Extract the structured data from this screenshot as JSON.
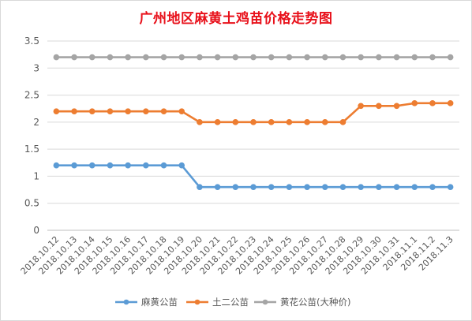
{
  "chart_data": {
    "type": "line",
    "title": "广州地区麻黄土鸡苗价格走势图",
    "categories": [
      "2018.10.12",
      "2018.10.13",
      "2018.10.14",
      "2018.10.15",
      "2018.10.16",
      "2018.10.17",
      "2018.10.18",
      "2018.10.19",
      "2018.10.20",
      "2018.10.21",
      "2018.10.22",
      "2018.10.23",
      "2018.10.24",
      "2018.10.25",
      "2018.10.26",
      "2018.10.27",
      "2018.10.28",
      "2018.10.29",
      "2018.10.30",
      "2018.10.31",
      "2018.11.1",
      "2018.11.2",
      "2018.11.3"
    ],
    "series": [
      {
        "name": "麻黄公苗",
        "color": "#5b9bd5",
        "values": [
          1.2,
          1.2,
          1.2,
          1.2,
          1.2,
          1.2,
          1.2,
          1.2,
          0.8,
          0.8,
          0.8,
          0.8,
          0.8,
          0.8,
          0.8,
          0.8,
          0.8,
          0.8,
          0.8,
          0.8,
          0.8,
          0.8,
          0.8
        ]
      },
      {
        "name": "土二公苗",
        "color": "#ed7d31",
        "values": [
          2.2,
          2.2,
          2.2,
          2.2,
          2.2,
          2.2,
          2.2,
          2.2,
          2.0,
          2.0,
          2.0,
          2.0,
          2.0,
          2.0,
          2.0,
          2.0,
          2.0,
          2.3,
          2.3,
          2.3,
          2.35,
          2.35,
          2.35
        ]
      },
      {
        "name": "黄花公苗(大种价)",
        "color": "#a5a5a5",
        "values": [
          3.2,
          3.2,
          3.2,
          3.2,
          3.2,
          3.2,
          3.2,
          3.2,
          3.2,
          3.2,
          3.2,
          3.2,
          3.2,
          3.2,
          3.2,
          3.2,
          3.2,
          3.2,
          3.2,
          3.2,
          3.2,
          3.2,
          3.2
        ]
      }
    ],
    "ylim": [
      0,
      3.5
    ],
    "yticks": [
      "0",
      "0.5",
      "1",
      "1.5",
      "2",
      "2.5",
      "3",
      "3.5"
    ],
    "grid": true,
    "legend_position": "bottom"
  }
}
